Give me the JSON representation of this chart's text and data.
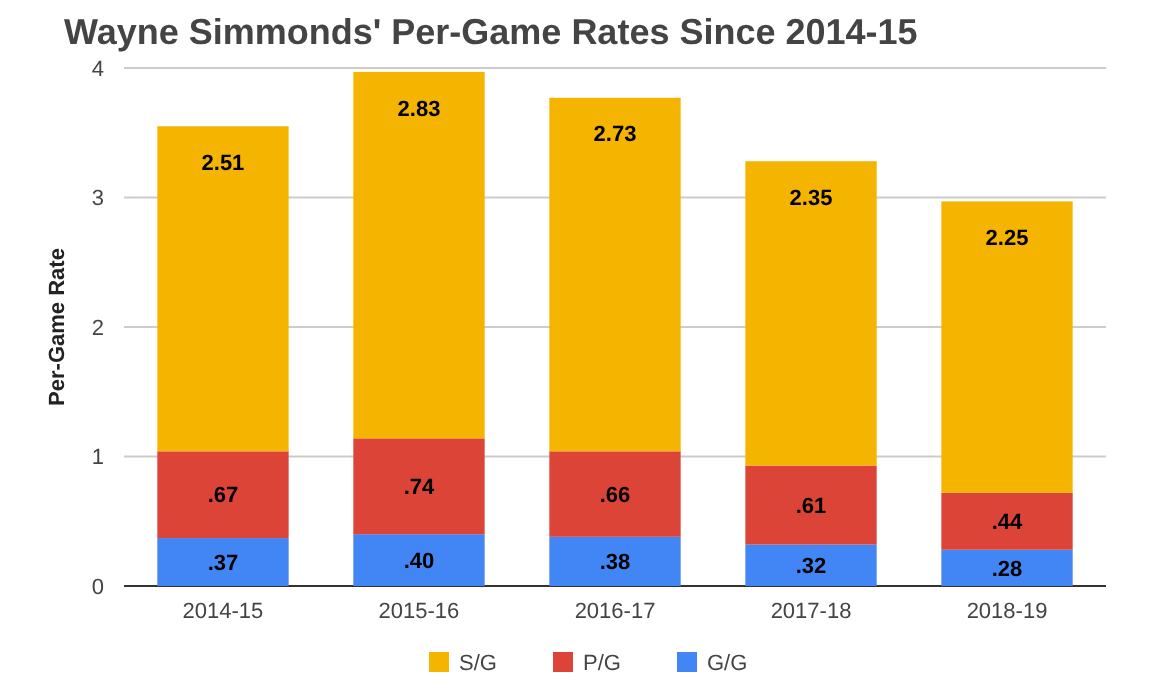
{
  "chart_data": {
    "type": "bar",
    "stacked": true,
    "title": "Wayne Simmonds' Per-Game Rates Since 2014-15",
    "ylabel": "Per-Game Rate",
    "categories": [
      "2014-15",
      "2015-16",
      "2016-17",
      "2017-18",
      "2018-19"
    ],
    "series": [
      {
        "name": "G/G",
        "color": "#4285f4",
        "values": [
          0.37,
          0.4,
          0.38,
          0.32,
          0.28
        ],
        "value_labels": [
          ".37",
          ".40",
          ".38",
          ".32",
          ".28"
        ]
      },
      {
        "name": "P/G",
        "color": "#db4437",
        "values": [
          0.67,
          0.74,
          0.66,
          0.61,
          0.44
        ],
        "value_labels": [
          ".67",
          ".74",
          ".66",
          ".61",
          ".44"
        ]
      },
      {
        "name": "S/G",
        "color": "#f4b400",
        "values": [
          2.51,
          2.83,
          2.73,
          2.35,
          2.25
        ],
        "value_labels": [
          "2.51",
          "2.83",
          "2.73",
          "2.35",
          "2.25"
        ]
      }
    ],
    "ylim": [
      0,
      4
    ],
    "yticks": [
      0,
      1,
      2,
      3,
      4
    ],
    "grid": "y",
    "legend": "bottom"
  }
}
